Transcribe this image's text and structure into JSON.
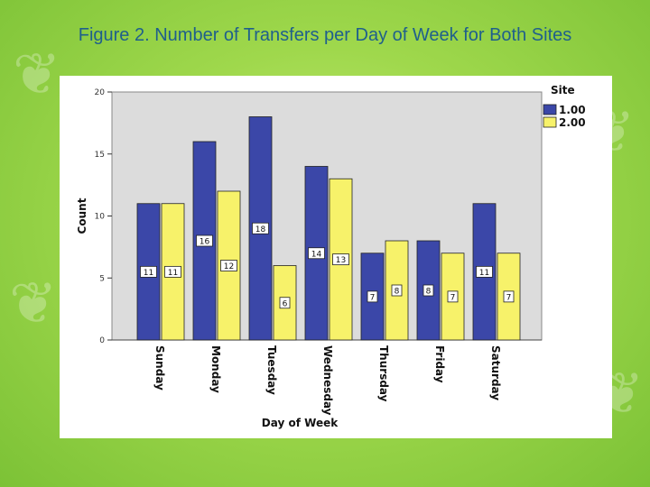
{
  "slide": {
    "title": "Figure 2.  Number of Transfers per Day of Week for Both Sites"
  },
  "chart_data": {
    "type": "bar",
    "xlabel": "Day of Week",
    "ylabel": "Count",
    "ylim": [
      0,
      20
    ],
    "yticks": [
      "0",
      "5",
      "10",
      "15",
      "20"
    ],
    "categories": [
      "Sunday",
      "Monday",
      "Tuesday",
      "Wednesday",
      "Thursday",
      "Friday",
      "Saturday"
    ],
    "legend": {
      "title": "Site",
      "position": "top-right"
    },
    "series": [
      {
        "name": "1.00",
        "color": "#3b47a8",
        "values": [
          11,
          16,
          18,
          14,
          7,
          8,
          11
        ]
      },
      {
        "name": "2.00",
        "color": "#f7f26a",
        "values": [
          11,
          12,
          6,
          13,
          8,
          7,
          7
        ]
      }
    ],
    "grid": false
  }
}
